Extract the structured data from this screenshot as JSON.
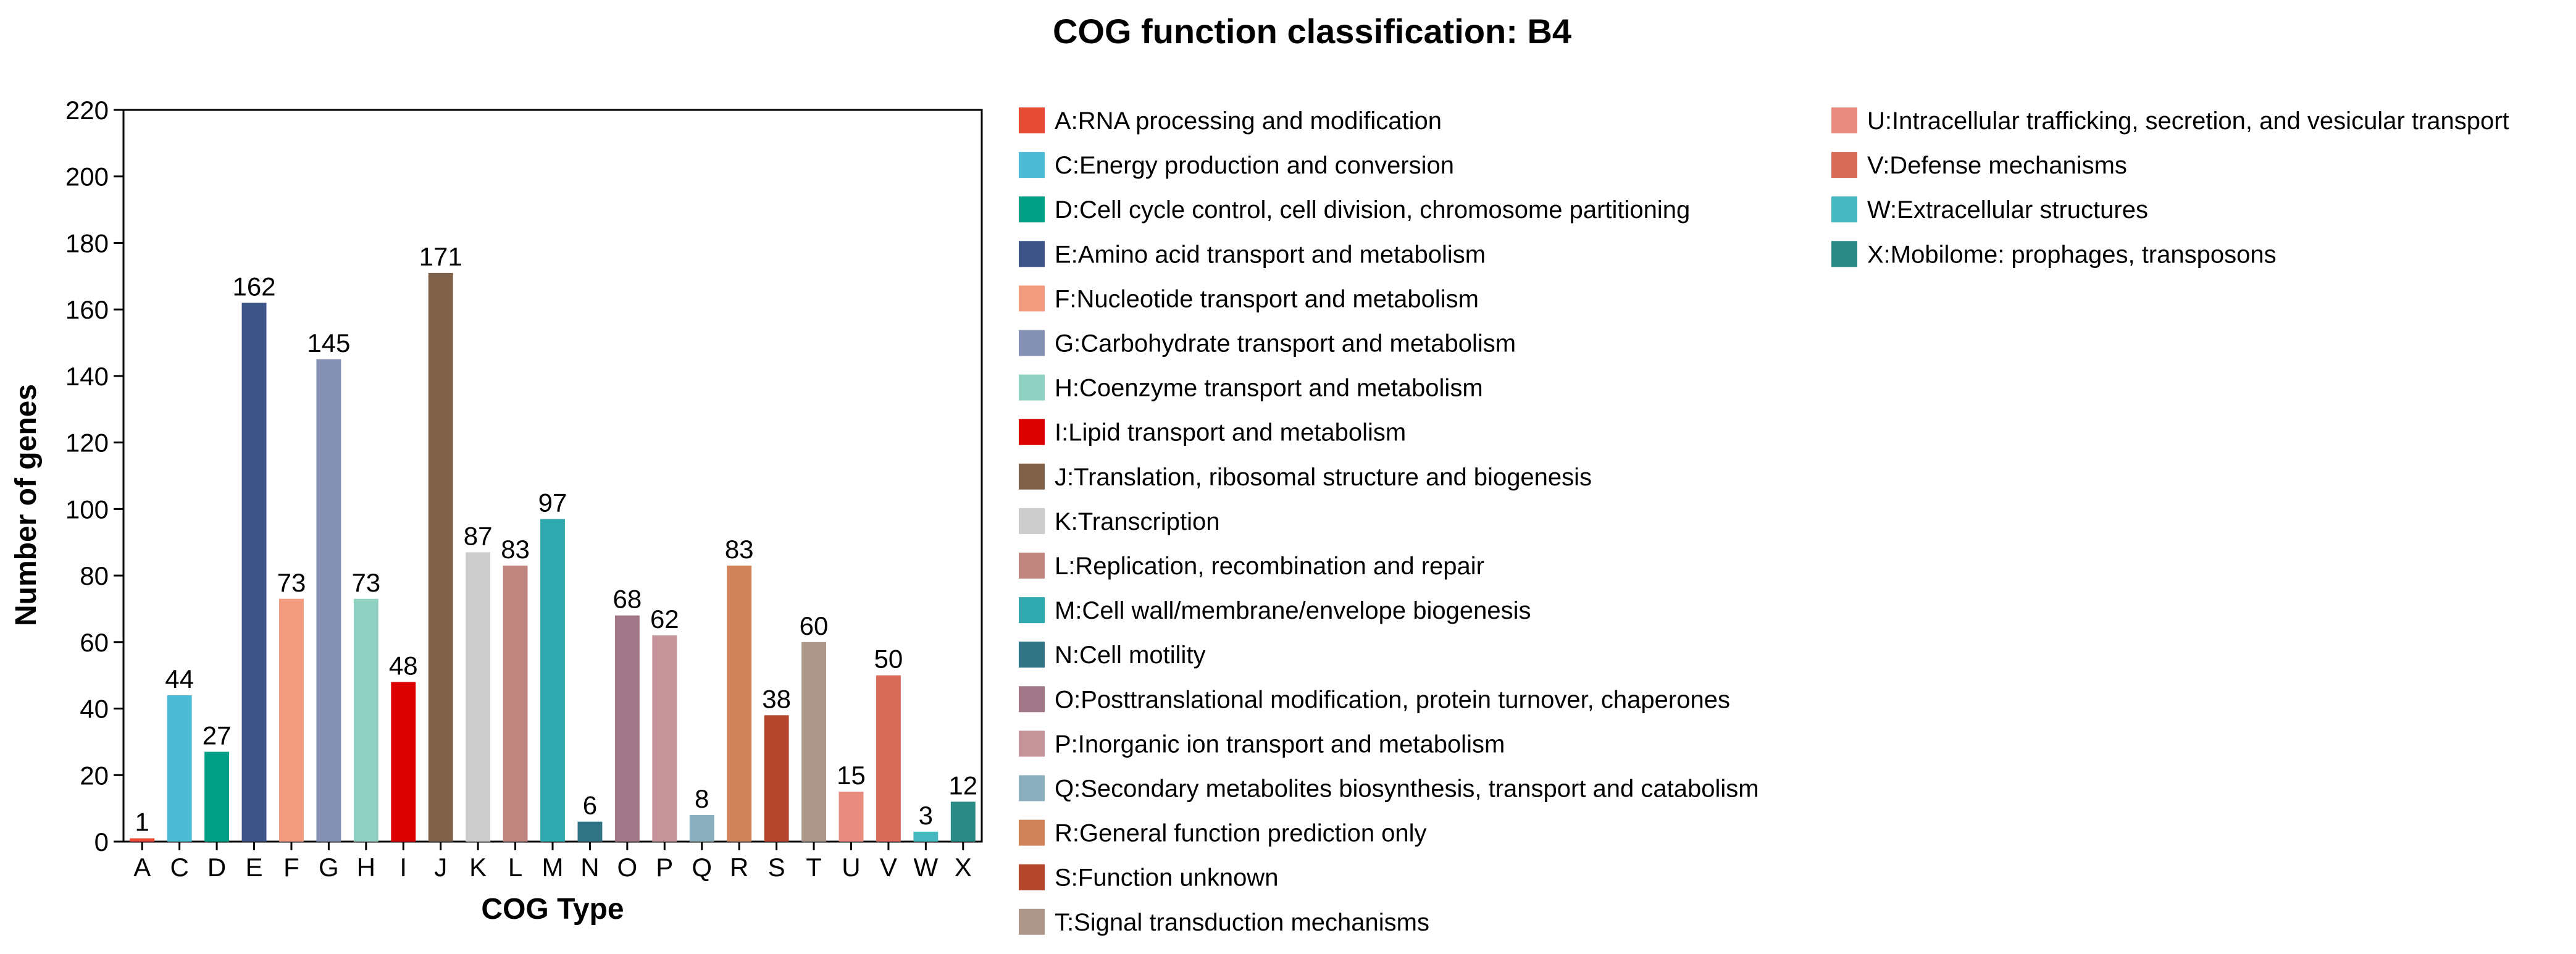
{
  "chart_data": {
    "type": "bar",
    "title": "COG function classification: B4",
    "xlabel": "COG Type",
    "ylabel": "Number of genes",
    "ylim": [
      0,
      220
    ],
    "yticks": [
      0,
      20,
      40,
      60,
      80,
      100,
      120,
      140,
      160,
      180,
      200,
      220
    ],
    "grid": false,
    "legend_position": "right",
    "categories": [
      "A",
      "C",
      "D",
      "E",
      "F",
      "G",
      "H",
      "I",
      "J",
      "K",
      "L",
      "M",
      "N",
      "O",
      "P",
      "Q",
      "R",
      "S",
      "T",
      "U",
      "V",
      "W",
      "X"
    ],
    "values": [
      1,
      44,
      27,
      162,
      73,
      145,
      73,
      48,
      171,
      87,
      83,
      97,
      6,
      68,
      62,
      8,
      83,
      38,
      60,
      15,
      50,
      3,
      12
    ],
    "colors": [
      "#E64B35",
      "#4DBBD5",
      "#00A087",
      "#3C5488",
      "#F39B7F",
      "#8491B4",
      "#91D1C2",
      "#DC0000",
      "#7E6148",
      "#CCCCCC",
      "#C0857E",
      "#2EAAAE",
      "#317486",
      "#A17687",
      "#C5949B",
      "#8BAFBC",
      "#D08358",
      "#B3462C",
      "#AD968A",
      "#E98B7E",
      "#D96B5B",
      "#45B8C0",
      "#2A8A85"
    ],
    "legend": [
      "A:RNA processing and modification",
      "C:Energy production and conversion",
      "D:Cell cycle control, cell division, chromosome partitioning",
      "E:Amino acid transport and metabolism",
      "F:Nucleotide transport and metabolism",
      "G:Carbohydrate transport and metabolism",
      "H:Coenzyme transport and metabolism",
      "I:Lipid transport and metabolism",
      "J:Translation, ribosomal structure and biogenesis",
      "K:Transcription",
      "L:Replication, recombination and repair",
      "M:Cell wall/membrane/envelope biogenesis",
      "N:Cell motility",
      "O:Posttranslational modification, protein turnover, chaperones",
      "P:Inorganic ion transport and metabolism",
      "Q:Secondary metabolites biosynthesis, transport and catabolism",
      "R:General function prediction only",
      "S:Function unknown",
      "T:Signal transduction mechanisms",
      "U:Intracellular trafficking, secretion, and vesicular transport",
      "V:Defense mechanisms",
      "W:Extracellular structures",
      "X:Mobilome: prophages, transposons"
    ]
  }
}
